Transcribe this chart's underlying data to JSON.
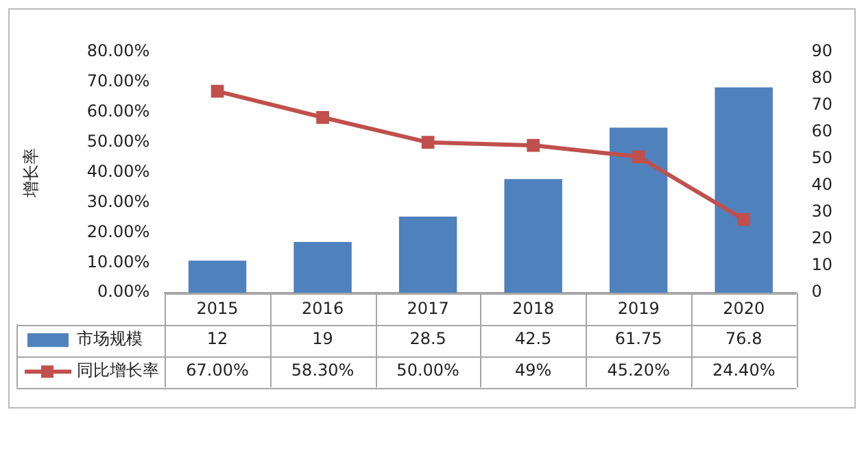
{
  "chart_data": {
    "type": "bar",
    "ylabel": "增长率",
    "categories": [
      "2015",
      "2016",
      "2017",
      "2018",
      "2019",
      "2020"
    ],
    "series": [
      {
        "name": "市场规模",
        "axis": "y2",
        "color": "#4f81bd",
        "values": [
          12,
          19,
          28.5,
          42.5,
          61.75,
          76.8
        ],
        "value_labels": [
          "12",
          "19",
          "28.5",
          "42.5",
          "61.75",
          "76.8"
        ]
      },
      {
        "name": "同比增长率",
        "type": "line",
        "color": "#c0504d",
        "marker": "square",
        "values": [
          67,
          58.3,
          50,
          49,
          45.2,
          24.4
        ],
        "value_labels": [
          "67.00%",
          "58.30%",
          "50.00%",
          "49%",
          "45.20%",
          "24.40%"
        ]
      }
    ],
    "ylim": [
      0,
      80
    ],
    "yticks": [
      {
        "value": 0,
        "label": "0.00%"
      },
      {
        "value": 10,
        "label": "10.00%"
      },
      {
        "value": 20,
        "label": "20.00%"
      },
      {
        "value": 30,
        "label": "30.00%"
      },
      {
        "value": 40,
        "label": "40.00%"
      },
      {
        "value": 50,
        "label": "50.00%"
      },
      {
        "value": 60,
        "label": "60.00%"
      },
      {
        "value": 70,
        "label": "70.00%"
      },
      {
        "value": 80,
        "label": "80.00%"
      }
    ],
    "y2lim": [
      0,
      90
    ],
    "y2ticks": [
      0,
      10,
      20,
      30,
      40,
      50,
      60,
      70,
      80,
      90
    ],
    "grid": false,
    "legend": "bottom left",
    "data_labels": true
  }
}
